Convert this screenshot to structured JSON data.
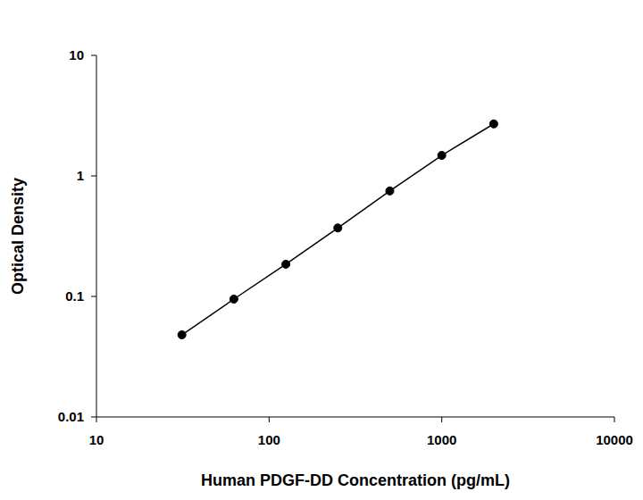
{
  "chart_data": {
    "type": "scatter",
    "x": [
      31.25,
      62.5,
      125,
      250,
      500,
      1000,
      2000
    ],
    "values": [
      0.048,
      0.095,
      0.185,
      0.37,
      0.75,
      1.48,
      2.7
    ],
    "xlabel": "Human PDGF-DD Concentration (pg/mL)",
    "ylabel": "Optical Density",
    "xlim": [
      10,
      10000
    ],
    "ylim": [
      0.01,
      10
    ],
    "xticks": [
      10,
      100,
      1000,
      10000
    ],
    "yticks": [
      0.01,
      0.1,
      1,
      10
    ],
    "log": true,
    "grid": false,
    "color": "#000000",
    "marker": "circle",
    "line_style": "solid"
  }
}
